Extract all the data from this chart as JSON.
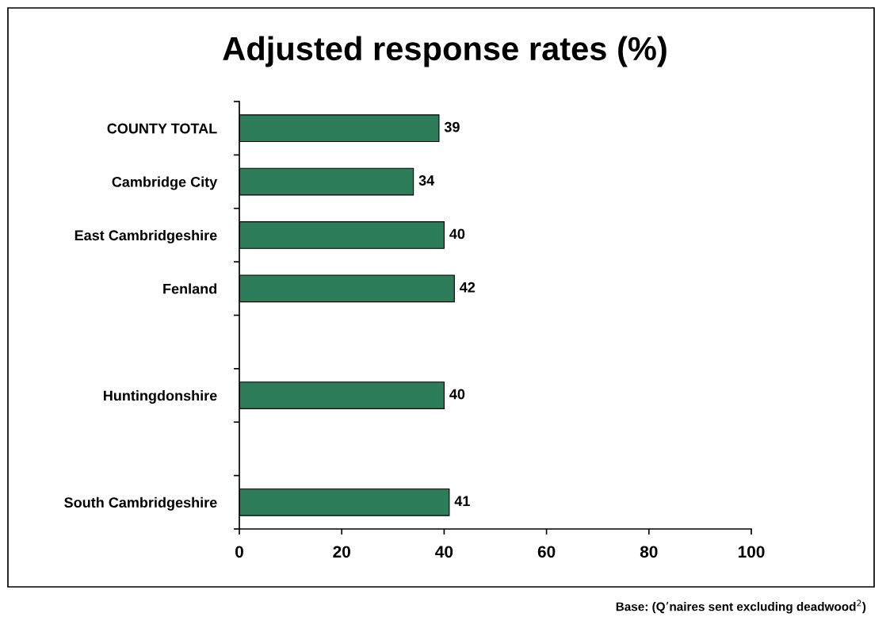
{
  "chart_data": {
    "type": "bar",
    "orientation": "horizontal",
    "title": "Adjusted response rates (%)",
    "categories": [
      "COUNTY TOTAL",
      "Cambridge City",
      "East Cambridgeshire",
      "Fenland",
      null,
      "Huntingdonshire",
      null,
      "South Cambridgeshire"
    ],
    "values": [
      39,
      34,
      40,
      42,
      null,
      40,
      null,
      41
    ],
    "color": "#2e7d5a",
    "xlim": [
      0,
      100
    ],
    "xticks": [
      0,
      20,
      40,
      60,
      80,
      100
    ],
    "data_labels": true,
    "grid": false,
    "legend": false,
    "annotations": [
      "Base: (Q’naires sent excluding deadwood$^{2}$)"
    ]
  }
}
